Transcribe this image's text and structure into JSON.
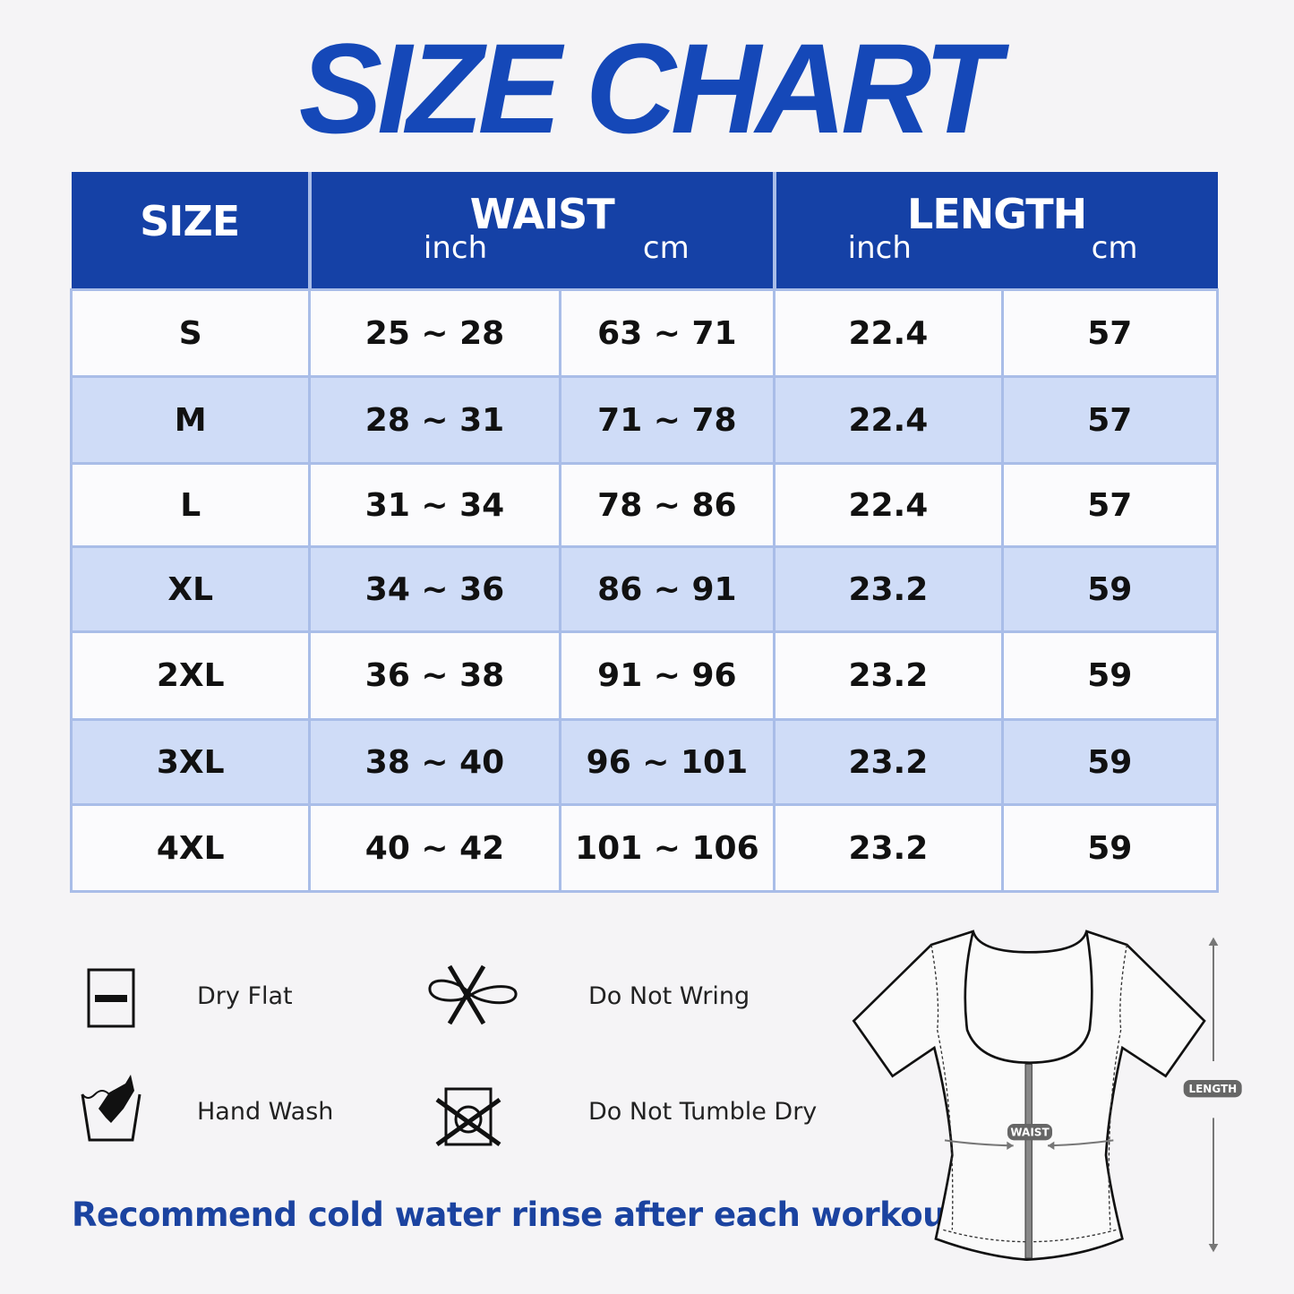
{
  "title": "SIZE CHART",
  "table": {
    "headers": {
      "size": "SIZE",
      "waist": "WAIST",
      "length": "LENGTH",
      "inch": "inch",
      "cm": "cm"
    },
    "rows": [
      {
        "size": "S",
        "waist_inch": "25 ~ 28",
        "waist_cm": "63 ~ 71",
        "length_inch": "22.4",
        "length_cm": "57"
      },
      {
        "size": "M",
        "waist_inch": "28 ~ 31",
        "waist_cm": "71 ~ 78",
        "length_inch": "22.4",
        "length_cm": "57"
      },
      {
        "size": "L",
        "waist_inch": "31 ~ 34",
        "waist_cm": "78 ~ 86",
        "length_inch": "22.4",
        "length_cm": "57"
      },
      {
        "size": "XL",
        "waist_inch": "34 ~ 36",
        "waist_cm": "86 ~ 91",
        "length_inch": "23.2",
        "length_cm": "59"
      },
      {
        "size": "2XL",
        "waist_inch": "36 ~ 38",
        "waist_cm": "91 ~ 96",
        "length_inch": "23.2",
        "length_cm": "59"
      },
      {
        "size": "3XL",
        "waist_inch": "38 ~ 40",
        "waist_cm": "96 ~ 101",
        "length_inch": "23.2",
        "length_cm": "59"
      },
      {
        "size": "4XL",
        "waist_inch": "40 ~ 42",
        "waist_cm": "101 ~ 106",
        "length_inch": "23.2",
        "length_cm": "59"
      }
    ]
  },
  "care": [
    {
      "icon": "dry-flat-icon",
      "label": "Dry Flat"
    },
    {
      "icon": "do-not-wring-icon",
      "label": "Do Not Wring"
    },
    {
      "icon": "hand-wash-icon",
      "label": "Hand Wash"
    },
    {
      "icon": "do-not-tumble-dry-icon",
      "label": "Do Not Tumble Dry"
    }
  ],
  "note": "Recommend cold water rinse after each workout.",
  "diagram": {
    "waist_label": "WAIST",
    "length_label": "LENGTH"
  },
  "colors": {
    "brand_blue": "#1541a6",
    "row_alt": "#cfdcf7",
    "border": "#a9bde8"
  }
}
